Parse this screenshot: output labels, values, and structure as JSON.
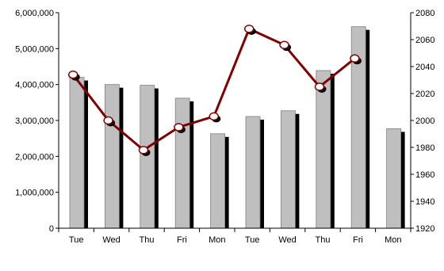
{
  "chart_data": {
    "type": "bar",
    "categories": [
      "Tue",
      "Wed",
      "Thu",
      "Fri",
      "Mon",
      "Tue",
      "Wed",
      "Thu",
      "Fri",
      "Mon"
    ],
    "series": [
      {
        "type": "bar",
        "axis": "left",
        "color": "#bfbfbf",
        "shadow_color": "#000000",
        "values": [
          4200000,
          4000000,
          3980000,
          3620000,
          2630000,
          3110000,
          3270000,
          4390000,
          5610000,
          2770000
        ]
      },
      {
        "type": "line",
        "axis": "right",
        "color": "#800000",
        "values": [
          2034,
          2000,
          1978,
          1995,
          2003,
          2068,
          2056,
          2025,
          2046,
          null
        ]
      }
    ],
    "left_axis": {
      "min": 0,
      "max": 6000000,
      "step": 1000000,
      "tick_labels": [
        "0",
        "1,000,000",
        "2,000,000",
        "3,000,000",
        "4,000,000",
        "5,000,000",
        "6,000,000"
      ]
    },
    "right_axis": {
      "min": 1920,
      "max": 2080,
      "step": 20,
      "tick_labels": [
        "1920",
        "1940",
        "1960",
        "1980",
        "2000",
        "2020",
        "2040",
        "2060",
        "2080"
      ]
    },
    "title": "",
    "xlabel": "",
    "ylabel": "",
    "legend": "none",
    "grid": false
  }
}
